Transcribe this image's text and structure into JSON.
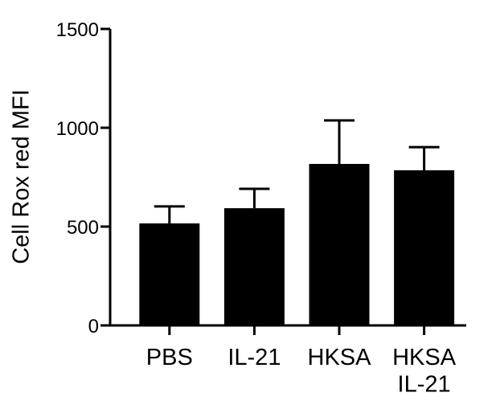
{
  "chart_data": {
    "type": "bar",
    "y_label": "Cell Rox red MFI",
    "categories": [
      "PBS",
      "IL-21",
      "HKSA",
      "HKSA\nIL-21"
    ],
    "values": [
      516,
      593,
      817,
      785
    ],
    "errors": [
      86,
      98,
      220,
      117
    ],
    "color": "#000000",
    "ylim": [
      0,
      1500
    ],
    "yticks": [
      0,
      500,
      1000,
      1500
    ],
    "grid": false
  }
}
